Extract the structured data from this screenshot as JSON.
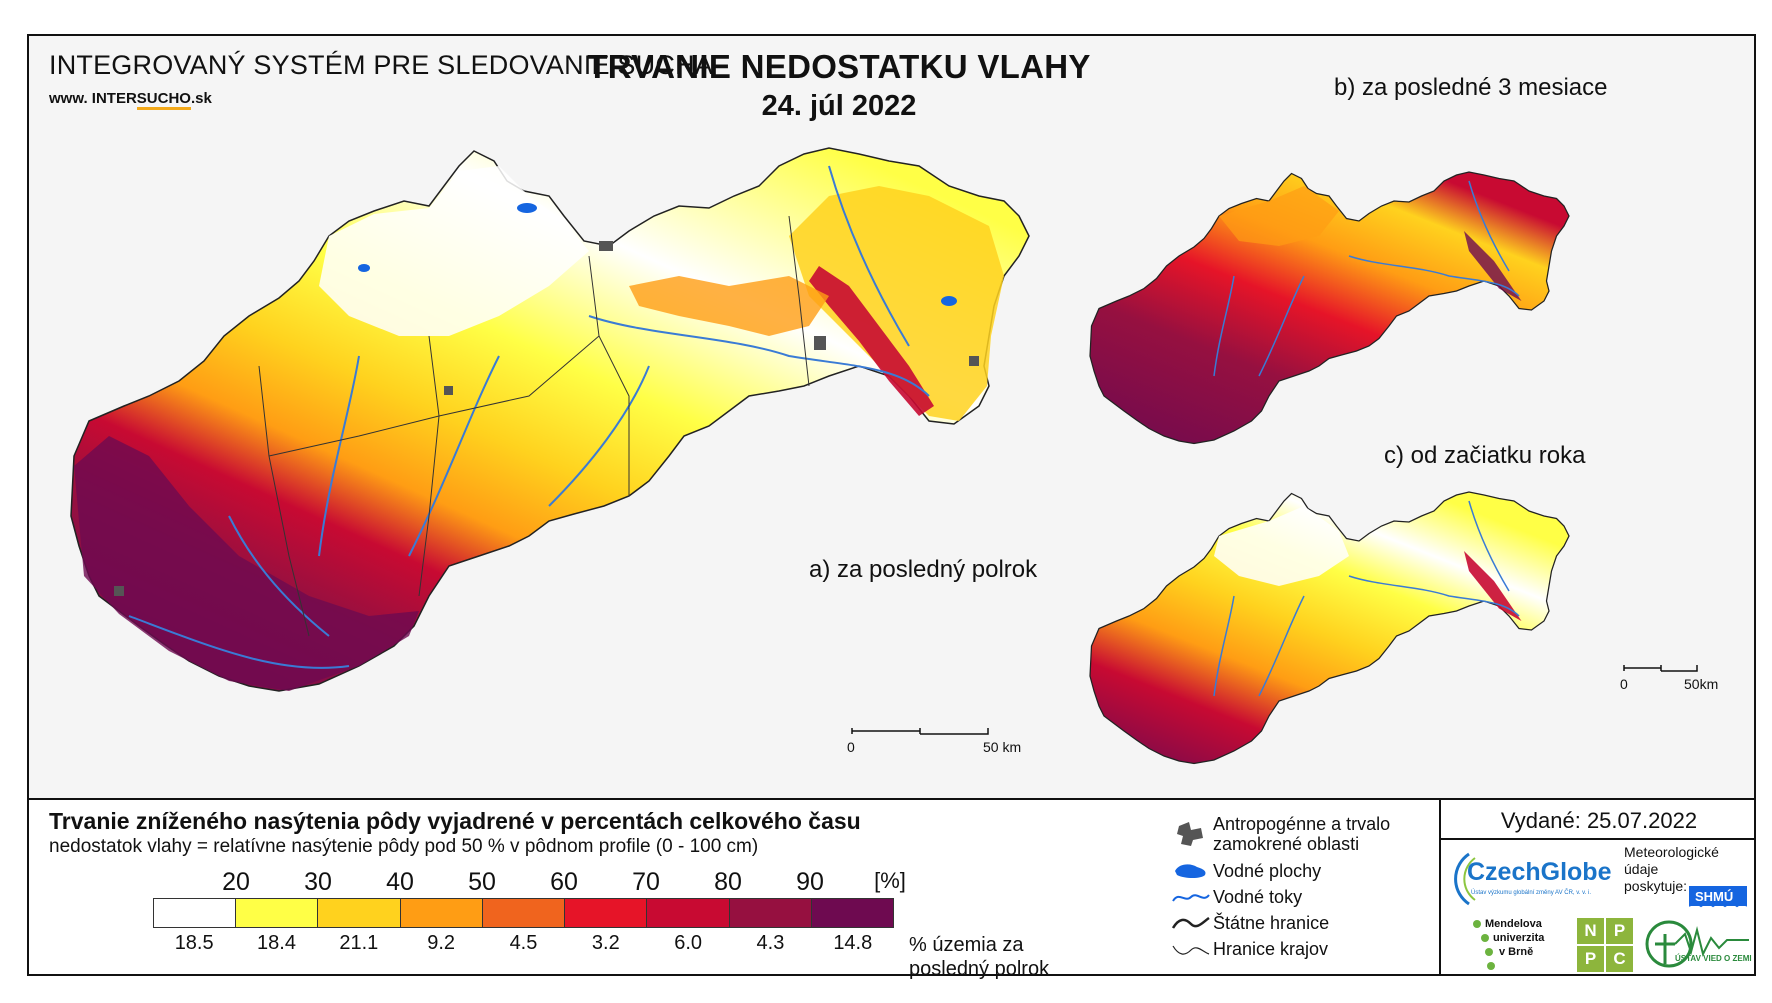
{
  "header": {
    "system_title": "INTEGROVANÝ SYSTÉM PRE SLEDOVANIE SUCHA",
    "website_prefix": "www. INTER",
    "website_highlight": "SUCHO",
    "website_suffix": ".sk",
    "main_title": "TRVANIE NEDOSTATKU VLAHY",
    "date": "24. júl 2022"
  },
  "panels": {
    "a": {
      "label": "a) za posledný polrok",
      "scale_zero": "0",
      "scale_end": "50 km"
    },
    "b": {
      "label": "b) za posledné 3 mesiace"
    },
    "c": {
      "label": "c) od začiatku roka",
      "scale_zero": "0",
      "scale_end": "50km"
    }
  },
  "legend": {
    "title": "Trvanie zníženého nasýtenia pôdy vyjadrené v percentách celkového času",
    "subtitle": "nedostatok vlahy = relatívne nasýtenie pôdy pod 50 % v pôdnom profile (0 - 100 cm)",
    "thresholds": [
      "20",
      "30",
      "40",
      "50",
      "60",
      "70",
      "80",
      "90",
      "[%]"
    ],
    "classes": [
      {
        "color": "#ffffff",
        "share": "18.5"
      },
      {
        "color": "#ffff46",
        "share": "18.4"
      },
      {
        "color": "#ffd21e",
        "share": "21.1"
      },
      {
        "color": "#ff9d14",
        "share": "9.2"
      },
      {
        "color": "#f0641e",
        "share": "4.5"
      },
      {
        "color": "#e61428",
        "share": "3.2"
      },
      {
        "color": "#c80a32",
        "share": "6.0"
      },
      {
        "color": "#961040",
        "share": "4.3"
      },
      {
        "color": "#6e0a50",
        "share": "14.8"
      }
    ],
    "share_unit": "% územia za posledný polrok"
  },
  "symbols": [
    {
      "icon": "anthropogenic-area-icon",
      "label": "Antropogénne a trvalo zamokrené oblasti"
    },
    {
      "icon": "water-body-icon",
      "label": "Vodné plochy"
    },
    {
      "icon": "river-icon",
      "label": "Vodné toky"
    },
    {
      "icon": "state-border-icon",
      "label": "Štátne hranice"
    },
    {
      "icon": "region-border-icon",
      "label": "Hranice krajov"
    }
  ],
  "credits": {
    "issued": "Vydané: 25.07.2022",
    "czechglobe": "CzechGlobe",
    "czechglobe_sub": "Ústav výzkumu globální změny AV ČR, v. v. i.",
    "meteo_text": "Meteorologické údaje poskytuje:",
    "shmu": "SHMÚ",
    "mendel": [
      "Mendelova",
      "univerzita",
      "v Brně"
    ],
    "nppc": [
      "N",
      "P",
      "P",
      "C"
    ],
    "uvz": "ÚSTAV VIED O ZEMI"
  },
  "colors": {
    "river": "#3a7bd5",
    "water": "#1565e0",
    "anthropogenic": "#555555",
    "border": "#222222"
  }
}
